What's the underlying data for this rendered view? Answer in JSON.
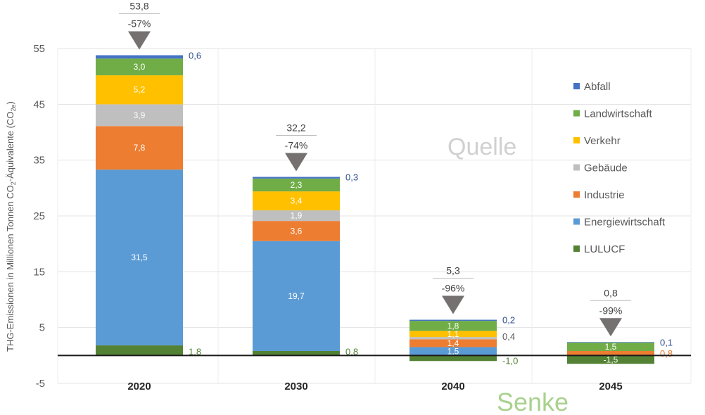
{
  "chart_data": {
    "type": "bar",
    "stacked": true,
    "categories": [
      "2020",
      "2030",
      "2040",
      "2045"
    ],
    "ylabel_main": "THG-Emissionen in Millionen Tonnen CO",
    "ylabel_sub2": "2",
    "ylabel_mid": "-Äquivalente (CO",
    "ylabel_sub2e": "2e",
    "ylabel_end": ")",
    "ylim": [
      -5,
      55
    ],
    "yticks": [
      "55",
      "45",
      "35",
      "25",
      "15",
      "5",
      "-5"
    ],
    "ytick_values": [
      55,
      45,
      35,
      25,
      15,
      5,
      -5
    ],
    "grid": true,
    "legend_position": "right",
    "series": [
      {
        "name": "LULUCF",
        "color": "#548235",
        "values": [
          1.8,
          0.8,
          -1.0,
          -1.5
        ],
        "labels": [
          "1,8",
          "0,8",
          "-1,0",
          "-1,5"
        ],
        "label_style": [
          "side",
          "side",
          "side",
          "inside"
        ]
      },
      {
        "name": "Energiewirtschaft",
        "color": "#5b9bd5",
        "values": [
          31.5,
          19.7,
          1.5,
          0
        ],
        "labels": [
          "31,5",
          "19,7",
          "1,5",
          ""
        ],
        "label_style": [
          "inside",
          "inside",
          "inside",
          "none"
        ]
      },
      {
        "name": "Industrie",
        "color": "#ed7d31",
        "values": [
          7.8,
          3.6,
          1.4,
          0.8
        ],
        "labels": [
          "7,8",
          "3,6",
          "1,4",
          "0,8"
        ],
        "label_style": [
          "inside",
          "inside",
          "inside",
          "side"
        ]
      },
      {
        "name": "Gebäude",
        "color": "#bfbfbf",
        "values": [
          3.9,
          1.9,
          0.4,
          0
        ],
        "labels": [
          "3,9",
          "1,9",
          "0,4",
          ""
        ],
        "label_style": [
          "inside",
          "inside",
          "side",
          "none"
        ]
      },
      {
        "name": "Verkehr",
        "color": "#ffc000",
        "values": [
          5.2,
          3.4,
          1.1,
          0
        ],
        "labels": [
          "5,2",
          "3,4",
          "1,1",
          ""
        ],
        "label_style": [
          "inside",
          "inside",
          "inside",
          "none"
        ]
      },
      {
        "name": "Landwirtschaft",
        "color": "#70ad47",
        "values": [
          3.0,
          2.3,
          1.8,
          1.5
        ],
        "labels": [
          "3,0",
          "2,3",
          "1,8",
          "1,5"
        ],
        "label_style": [
          "inside",
          "inside",
          "inside",
          "inside"
        ]
      },
      {
        "name": "Abfall",
        "color": "#4472c4",
        "values": [
          0.6,
          0.3,
          0.2,
          0.1
        ],
        "labels": [
          "0,6",
          "0,3",
          "0,2",
          "0,1"
        ],
        "label_style": [
          "side",
          "side",
          "side",
          "side"
        ]
      }
    ],
    "legend_order": [
      "Abfall",
      "Landwirtschaft",
      "Verkehr",
      "Gebäude",
      "Industrie",
      "Energiewirtschaft",
      "LULUCF"
    ],
    "totals": [
      {
        "total": "53,8",
        "change": ""
      },
      {
        "total": "32,2",
        "change": "-74%"
      },
      {
        "total": "5,3",
        "change": "-96%"
      },
      {
        "total": "0,8",
        "change": "-99%"
      }
    ],
    "first_change": "-57%",
    "annotations": {
      "source": "Quelle",
      "sink": "Senke"
    }
  }
}
